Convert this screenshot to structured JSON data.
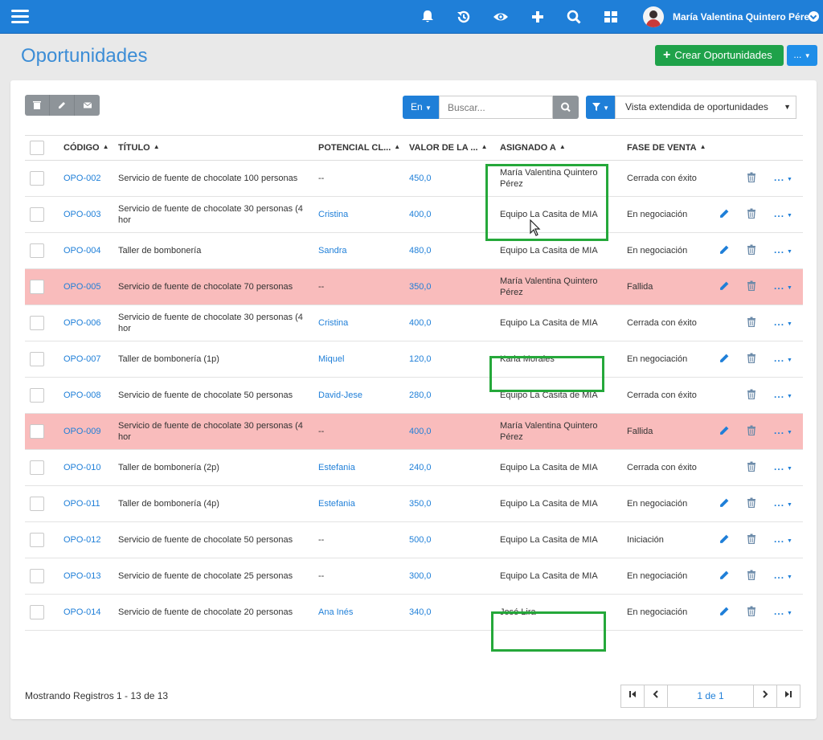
{
  "user": {
    "name": "María Valentina Quintero Pérez"
  },
  "header": {
    "icons": [
      "bell-icon",
      "history-icon",
      "eye-icon",
      "plus-icon",
      "search-icon",
      "grid-icon"
    ]
  },
  "page": {
    "title": "Oportunidades",
    "create_label": "Crear Oportunidades",
    "more_label": "..."
  },
  "toolbar": {
    "lang_label": "En",
    "search_placeholder": "Buscar...",
    "view_label": "Vista extendida de oportunidades"
  },
  "table": {
    "columns": [
      "CÓDIGO",
      "TÍTULO",
      "POTENCIAL CL...",
      "VALOR DE LA ...",
      "ASIGNADO A",
      "FASE DE VENTA"
    ],
    "rows": [
      {
        "code": "OPO-002",
        "title": "Servicio de fuente de chocolate 100 personas",
        "client": "--",
        "value": "450,0",
        "assigned": "María Valentina Quintero Pérez",
        "stage": "Cerrada con éxito",
        "edit": false,
        "failed": false
      },
      {
        "code": "OPO-003",
        "title": "Servicio de fuente de chocolate 30 personas (4 hor",
        "client": "Cristina",
        "value": "400,0",
        "assigned": "Equipo La Casita de MIA",
        "stage": "En negociación",
        "edit": true,
        "failed": false
      },
      {
        "code": "OPO-004",
        "title": "Taller de bombonería",
        "client": "Sandra",
        "value": "480,0",
        "assigned": "Equipo La Casita de MIA",
        "stage": "En negociación",
        "edit": true,
        "failed": false
      },
      {
        "code": "OPO-005",
        "title": "Servicio de fuente de chocolate 70 personas",
        "client": "--",
        "value": "350,0",
        "assigned": "María Valentina Quintero Pérez",
        "stage": "Fallida",
        "edit": true,
        "failed": true
      },
      {
        "code": "OPO-006",
        "title": "Servicio de fuente de chocolate 30 personas (4 hor",
        "client": "Cristina",
        "value": "400,0",
        "assigned": "Equipo La Casita de MIA",
        "stage": "Cerrada con éxito",
        "edit": false,
        "failed": false
      },
      {
        "code": "OPO-007",
        "title": "Taller de bombonería (1p)",
        "client": "Miquel",
        "value": "120,0",
        "assigned": "Karla Morales",
        "stage": "En negociación",
        "edit": true,
        "failed": false
      },
      {
        "code": "OPO-008",
        "title": "Servicio de fuente de chocolate 50 personas",
        "client": "David-Jese",
        "value": "280,0",
        "assigned": "Equipo La Casita de MIA",
        "stage": "Cerrada con éxito",
        "edit": false,
        "failed": false
      },
      {
        "code": "OPO-009",
        "title": "Servicio de fuente de chocolate 30 personas (4 hor",
        "client": "--",
        "value": "400,0",
        "assigned": "María Valentina Quintero Pérez",
        "stage": "Fallida",
        "edit": true,
        "failed": true
      },
      {
        "code": "OPO-010",
        "title": "Taller de bombonería (2p)",
        "client": "Estefania",
        "value": "240,0",
        "assigned": "Equipo La Casita de MIA",
        "stage": "Cerrada con éxito",
        "edit": false,
        "failed": false
      },
      {
        "code": "OPO-011",
        "title": "Taller de bombonería (4p)",
        "client": "Estefania",
        "value": "350,0",
        "assigned": "Equipo La Casita de MIA",
        "stage": "En negociación",
        "edit": true,
        "failed": false
      },
      {
        "code": "OPO-012",
        "title": "Servicio de fuente de chocolate 50 personas",
        "client": "--",
        "value": "500,0",
        "assigned": "Equipo La Casita de MIA",
        "stage": "Iniciación",
        "edit": true,
        "failed": false
      },
      {
        "code": "OPO-013",
        "title": "Servicio de fuente de chocolate 25 personas",
        "client": "--",
        "value": "300,0",
        "assigned": "Equipo La Casita de MIA",
        "stage": "En negociación",
        "edit": true,
        "failed": false
      },
      {
        "code": "OPO-014",
        "title": "Servicio de fuente de chocolate 20 personas",
        "client": "Ana Inés",
        "value": "340,0",
        "assigned": "José Lira",
        "stage": "En negociación",
        "edit": true,
        "failed": false
      }
    ]
  },
  "footer": {
    "records_text": "Mostrando Registros 1 - 13 de 13",
    "page_info": "1 de 1"
  },
  "colors": {
    "primary": "#1f7fd8",
    "success": "#1fa24a",
    "failed_row": "#f9bcbc",
    "highlight": "#25a83a"
  }
}
